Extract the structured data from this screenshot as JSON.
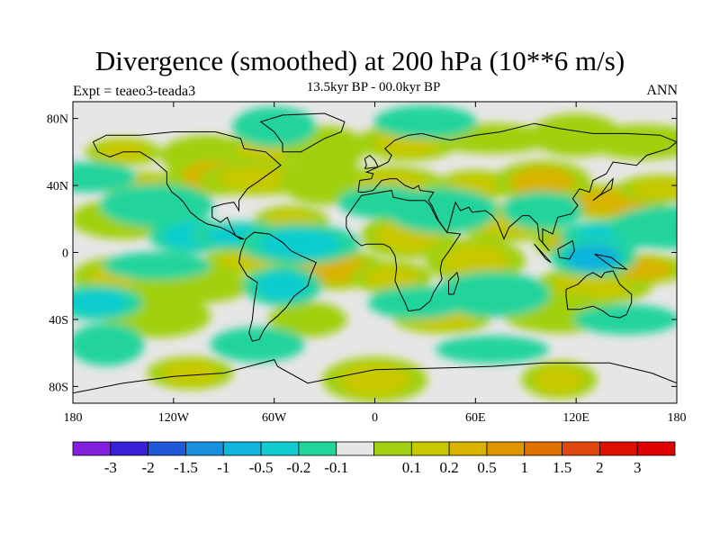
{
  "title": "Divergence (smoothed) at 200 hPa (10**6 m/s)",
  "subtitle": "13.5kyr BP - 00.0kyr BP",
  "left_label": "Expt = teaeo3-teada3",
  "right_label": "ANN",
  "map": {
    "projection": "cylindrical equidistant",
    "lon_range": [
      -180,
      180
    ],
    "lat_range": [
      -90,
      90
    ],
    "background_color": "#e6e6e6",
    "lat_ticks": [
      {
        "value": 80,
        "label": "80N"
      },
      {
        "value": 40,
        "label": "40N"
      },
      {
        "value": 0,
        "label": "0"
      },
      {
        "value": -40,
        "label": "40S"
      },
      {
        "value": -80,
        "label": "80S"
      }
    ],
    "lon_ticks": [
      {
        "value": -180,
        "label": "180"
      },
      {
        "value": -120,
        "label": "120W"
      },
      {
        "value": -60,
        "label": "60W"
      },
      {
        "value": 0,
        "label": "0"
      },
      {
        "value": 60,
        "label": "60E"
      },
      {
        "value": 120,
        "label": "120E"
      },
      {
        "value": 180,
        "label": "180"
      }
    ],
    "fields": [
      {
        "lon": -150,
        "lat": 60,
        "level": 2
      },
      {
        "lon": -100,
        "lat": 58,
        "level": 1
      },
      {
        "lon": -60,
        "lat": 62,
        "level": 2
      },
      {
        "lon": -30,
        "lat": 62,
        "level": 1
      },
      {
        "lon": 20,
        "lat": 66,
        "level": 2
      },
      {
        "lon": 70,
        "lat": 68,
        "level": 1
      },
      {
        "lon": 120,
        "lat": 70,
        "level": 1
      },
      {
        "lon": 160,
        "lat": 66,
        "level": 1
      },
      {
        "lon": -140,
        "lat": 40,
        "level": 2
      },
      {
        "lon": -95,
        "lat": 46,
        "level": 3
      },
      {
        "lon": -70,
        "lat": 44,
        "level": 2
      },
      {
        "lon": -30,
        "lat": 42,
        "level": 1
      },
      {
        "lon": 10,
        "lat": 40,
        "level": 2
      },
      {
        "lon": 60,
        "lat": 40,
        "level": 2
      },
      {
        "lon": 100,
        "lat": 42,
        "level": 3
      },
      {
        "lon": 140,
        "lat": 30,
        "level": 3
      },
      {
        "lon": 170,
        "lat": 38,
        "level": 2
      },
      {
        "lon": -150,
        "lat": 20,
        "level": 1
      },
      {
        "lon": -50,
        "lat": 18,
        "level": 2
      },
      {
        "lon": 20,
        "lat": 10,
        "level": 2
      },
      {
        "lon": 80,
        "lat": 18,
        "level": 2
      },
      {
        "lon": 120,
        "lat": 5,
        "level": 3
      },
      {
        "lon": -150,
        "lat": -15,
        "level": 2
      },
      {
        "lon": -110,
        "lat": -20,
        "level": 1
      },
      {
        "lon": -75,
        "lat": -5,
        "level": 2
      },
      {
        "lon": -25,
        "lat": -10,
        "level": 3
      },
      {
        "lon": 10,
        "lat": -15,
        "level": 2
      },
      {
        "lon": 60,
        "lat": -5,
        "level": 2
      },
      {
        "lon": 130,
        "lat": -20,
        "level": 2
      },
      {
        "lon": 160,
        "lat": -10,
        "level": 3
      },
      {
        "lon": -130,
        "lat": -38,
        "level": 1
      },
      {
        "lon": -40,
        "lat": -40,
        "level": 1
      },
      {
        "lon": 40,
        "lat": -40,
        "level": 2
      },
      {
        "lon": 110,
        "lat": -36,
        "level": 1
      },
      {
        "lon": -110,
        "lat": -72,
        "level": 2
      },
      {
        "lon": 0,
        "lat": -76,
        "level": 2
      },
      {
        "lon": 110,
        "lat": -76,
        "level": 2
      },
      {
        "lon": -170,
        "lat": 45,
        "level": -1
      },
      {
        "lon": -130,
        "lat": 28,
        "level": -1
      },
      {
        "lon": -110,
        "lat": 10,
        "level": -2
      },
      {
        "lon": -80,
        "lat": 10,
        "level": -2
      },
      {
        "lon": -45,
        "lat": 5,
        "level": -2
      },
      {
        "lon": 5,
        "lat": 30,
        "level": -1
      },
      {
        "lon": 40,
        "lat": 25,
        "level": -1
      },
      {
        "lon": 100,
        "lat": 25,
        "level": -1
      },
      {
        "lon": 140,
        "lat": 10,
        "level": -2
      },
      {
        "lon": 175,
        "lat": 15,
        "level": -1
      },
      {
        "lon": -165,
        "lat": -30,
        "level": -2
      },
      {
        "lon": -130,
        "lat": -8,
        "level": -1
      },
      {
        "lon": -55,
        "lat": -20,
        "level": -2
      },
      {
        "lon": 25,
        "lat": -30,
        "level": -1
      },
      {
        "lon": 70,
        "lat": -25,
        "level": -1
      },
      {
        "lon": 130,
        "lat": -3,
        "level": -3
      },
      {
        "lon": 150,
        "lat": -40,
        "level": -1
      },
      {
        "lon": -160,
        "lat": -55,
        "level": -1
      },
      {
        "lon": -70,
        "lat": -55,
        "level": -1
      },
      {
        "lon": 70,
        "lat": -58,
        "level": -1
      },
      {
        "lon": -60,
        "lat": 75,
        "level": -1
      },
      {
        "lon": 30,
        "lat": 78,
        "level": -1
      }
    ]
  },
  "colorbar": {
    "colors": [
      "#8420e0",
      "#3820d8",
      "#1f58d8",
      "#1890e0",
      "#10b4dc",
      "#10ccd0",
      "#20d49c",
      "#e6e6e6",
      "#a0d010",
      "#c8c800",
      "#d8b400",
      "#e09400",
      "#e07000",
      "#e04810",
      "#e01000",
      "#e00000"
    ],
    "labels": [
      "-3",
      "-2",
      "-1.5",
      "-1",
      "-0.5",
      "-0.2",
      "-0.1",
      "0.1",
      "0.2",
      "0.5",
      "1",
      "1.5",
      "2",
      "3"
    ]
  }
}
